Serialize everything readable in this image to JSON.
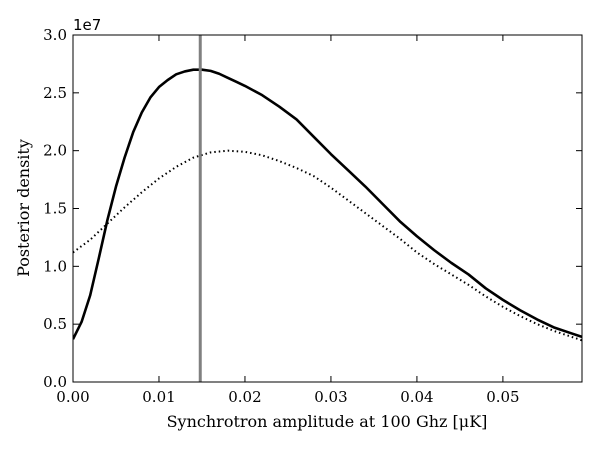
{
  "chart_data": {
    "type": "line",
    "title": "",
    "xlabel": "Synchrotron amplitude at 100 Ghz [μK]",
    "ylabel": "Posterior density",
    "y_offset_label": "1e7",
    "xlim": [
      0.0,
      0.0592
    ],
    "ylim": [
      0.0,
      30000000
    ],
    "x_ticks": [
      0.0,
      0.01,
      0.02,
      0.03,
      0.04,
      0.05
    ],
    "x_tick_labels": [
      "0.00",
      "0.01",
      "0.02",
      "0.03",
      "0.04",
      "0.05"
    ],
    "y_ticks": [
      0,
      5000000,
      10000000,
      15000000,
      20000000,
      25000000,
      30000000
    ],
    "y_tick_labels": [
      "0.0",
      "0.5",
      "1.0",
      "1.5",
      "2.0",
      "2.5",
      "3.0"
    ],
    "grid": false,
    "legend": "none",
    "reference_line": {
      "x": 0.0148,
      "color": "#808080"
    },
    "series": [
      {
        "style": "solid",
        "color": "#000000",
        "x": [
          0.0,
          0.001,
          0.002,
          0.003,
          0.004,
          0.005,
          0.006,
          0.007,
          0.008,
          0.009,
          0.01,
          0.011,
          0.012,
          0.013,
          0.014,
          0.015,
          0.016,
          0.017,
          0.018,
          0.019,
          0.02,
          0.022,
          0.024,
          0.026,
          0.028,
          0.03,
          0.032,
          0.034,
          0.036,
          0.038,
          0.04,
          0.042,
          0.044,
          0.046,
          0.048,
          0.05,
          0.052,
          0.054,
          0.056,
          0.058,
          0.0592
        ],
        "y": [
          3700000,
          5200000,
          7500000,
          10700000,
          14000000,
          16900000,
          19400000,
          21600000,
          23300000,
          24600000,
          25500000,
          26100000,
          26600000,
          26850000,
          27000000,
          27000000,
          26900000,
          26650000,
          26300000,
          25950000,
          25600000,
          24800000,
          23800000,
          22700000,
          21200000,
          19700000,
          18300000,
          16900000,
          15400000,
          13900000,
          12600000,
          11400000,
          10300000,
          9300000,
          8100000,
          7100000,
          6200000,
          5400000,
          4700000,
          4200000,
          3900000
        ]
      },
      {
        "style": "dotted",
        "color": "#000000",
        "x": [
          0.0,
          0.002,
          0.004,
          0.006,
          0.008,
          0.01,
          0.012,
          0.014,
          0.016,
          0.018,
          0.02,
          0.022,
          0.024,
          0.026,
          0.028,
          0.03,
          0.032,
          0.034,
          0.036,
          0.038,
          0.04,
          0.042,
          0.044,
          0.046,
          0.048,
          0.05,
          0.052,
          0.054,
          0.056,
          0.058,
          0.0592
        ],
        "y": [
          11200000,
          12300000,
          13700000,
          15100000,
          16400000,
          17600000,
          18600000,
          19400000,
          19850000,
          20000000,
          19900000,
          19600000,
          19100000,
          18500000,
          17800000,
          16800000,
          15700000,
          14600000,
          13500000,
          12400000,
          11200000,
          10200000,
          9300000,
          8400000,
          7400000,
          6500000,
          5700000,
          5000000,
          4400000,
          3900000,
          3600000
        ]
      }
    ]
  }
}
